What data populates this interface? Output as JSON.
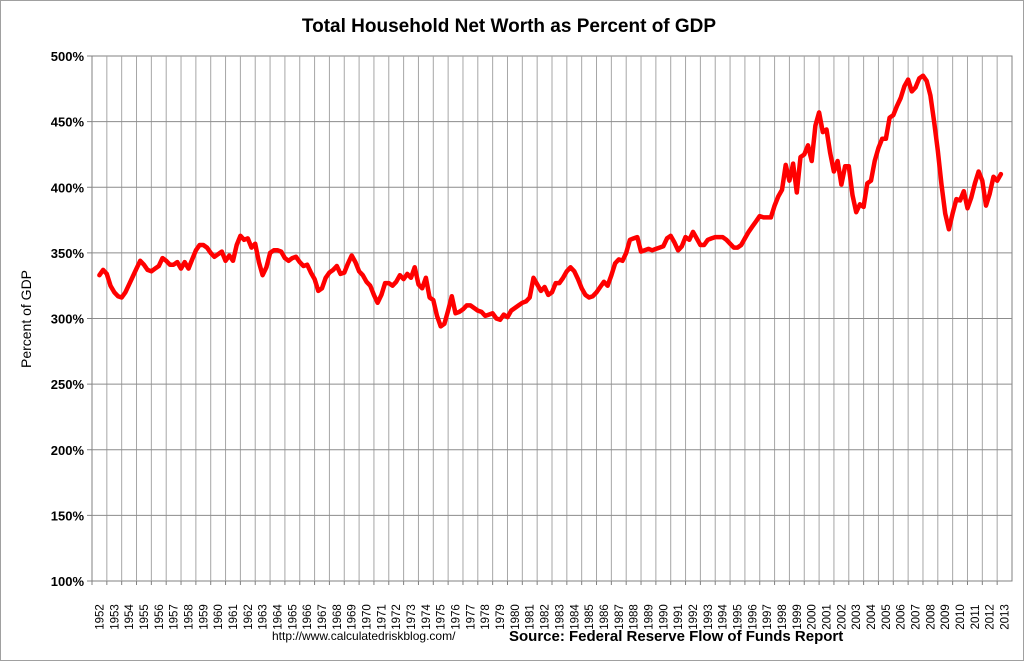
{
  "chart_data": {
    "type": "line",
    "title": "Total Household Net Worth as Percent of GDP",
    "xlabel": "",
    "ylabel": "Percent of GDP",
    "ylim": [
      100,
      500
    ],
    "y_ticks": [
      100,
      150,
      200,
      250,
      300,
      350,
      400,
      450,
      500
    ],
    "y_tick_labels": [
      "100%",
      "150%",
      "200%",
      "250%",
      "300%",
      "350%",
      "400%",
      "450%",
      "500%"
    ],
    "x_tick_labels": [
      "1952",
      "1953",
      "1954",
      "1955",
      "1956",
      "1957",
      "1958",
      "1959",
      "1960",
      "1961",
      "1962",
      "1963",
      "1964",
      "1965",
      "1966",
      "1967",
      "1968",
      "1969",
      "1970",
      "1971",
      "1972",
      "1973",
      "1974",
      "1975",
      "1976",
      "1977",
      "1978",
      "1979",
      "1980",
      "1981",
      "1982",
      "1983",
      "1984",
      "1985",
      "1986",
      "1987",
      "1988",
      "1989",
      "1990",
      "1991",
      "1992",
      "1993",
      "1994",
      "1995",
      "1996",
      "1997",
      "1998",
      "1999",
      "2000",
      "2001",
      "2002",
      "2003",
      "2004",
      "2005",
      "2006",
      "2007",
      "2008",
      "2009",
      "2010",
      "2011",
      "2012",
      "2013"
    ],
    "grid": true,
    "series": [
      {
        "color": "#ff0000",
        "points": [
          [
            1952.0,
            333
          ],
          [
            1952.25,
            337
          ],
          [
            1952.5,
            334
          ],
          [
            1952.75,
            325
          ],
          [
            1953.0,
            320
          ],
          [
            1953.25,
            317
          ],
          [
            1953.5,
            316
          ],
          [
            1953.75,
            320
          ],
          [
            1954.0,
            326
          ],
          [
            1954.25,
            332
          ],
          [
            1954.5,
            338
          ],
          [
            1954.75,
            344
          ],
          [
            1955.0,
            341
          ],
          [
            1955.25,
            337
          ],
          [
            1955.5,
            336
          ],
          [
            1955.75,
            338
          ],
          [
            1956.0,
            340
          ],
          [
            1956.25,
            346
          ],
          [
            1956.5,
            344
          ],
          [
            1956.75,
            341
          ],
          [
            1957.0,
            341
          ],
          [
            1957.25,
            343
          ],
          [
            1957.5,
            338
          ],
          [
            1957.75,
            343
          ],
          [
            1958.0,
            338
          ],
          [
            1958.25,
            345
          ],
          [
            1958.5,
            352
          ],
          [
            1958.75,
            356
          ],
          [
            1959.0,
            356
          ],
          [
            1959.25,
            354
          ],
          [
            1959.5,
            350
          ],
          [
            1959.75,
            347
          ],
          [
            1960.0,
            349
          ],
          [
            1960.25,
            351
          ],
          [
            1960.5,
            344
          ],
          [
            1960.75,
            348
          ],
          [
            1961.0,
            344
          ],
          [
            1961.25,
            356
          ],
          [
            1961.5,
            363
          ],
          [
            1961.75,
            360
          ],
          [
            1962.0,
            361
          ],
          [
            1962.25,
            354
          ],
          [
            1962.5,
            357
          ],
          [
            1962.75,
            343
          ],
          [
            1963.0,
            333
          ],
          [
            1963.25,
            339
          ],
          [
            1963.5,
            350
          ],
          [
            1963.75,
            352
          ],
          [
            1964.0,
            352
          ],
          [
            1964.25,
            351
          ],
          [
            1964.5,
            346
          ],
          [
            1964.75,
            344
          ],
          [
            1965.0,
            346
          ],
          [
            1965.25,
            347
          ],
          [
            1965.5,
            343
          ],
          [
            1965.75,
            340
          ],
          [
            1966.0,
            341
          ],
          [
            1966.25,
            335
          ],
          [
            1966.5,
            330
          ],
          [
            1966.75,
            321
          ],
          [
            1967.0,
            323
          ],
          [
            1967.25,
            331
          ],
          [
            1967.5,
            335
          ],
          [
            1967.75,
            337
          ],
          [
            1968.0,
            340
          ],
          [
            1968.25,
            334
          ],
          [
            1968.5,
            335
          ],
          [
            1968.75,
            342
          ],
          [
            1969.0,
            348
          ],
          [
            1969.25,
            343
          ],
          [
            1969.5,
            336
          ],
          [
            1969.75,
            333
          ],
          [
            1970.0,
            328
          ],
          [
            1970.25,
            325
          ],
          [
            1970.5,
            318
          ],
          [
            1970.75,
            312
          ],
          [
            1971.0,
            318
          ],
          [
            1971.25,
            327
          ],
          [
            1971.5,
            327
          ],
          [
            1971.75,
            325
          ],
          [
            1972.0,
            328
          ],
          [
            1972.25,
            333
          ],
          [
            1972.5,
            330
          ],
          [
            1972.75,
            334
          ],
          [
            1973.0,
            331
          ],
          [
            1973.25,
            339
          ],
          [
            1973.5,
            326
          ],
          [
            1973.75,
            323
          ],
          [
            1974.0,
            331
          ],
          [
            1974.25,
            316
          ],
          [
            1974.5,
            314
          ],
          [
            1974.75,
            302
          ],
          [
            1975.0,
            294
          ],
          [
            1975.25,
            296
          ],
          [
            1975.5,
            306
          ],
          [
            1975.75,
            317
          ],
          [
            1976.0,
            304
          ],
          [
            1976.25,
            305
          ],
          [
            1976.5,
            307
          ],
          [
            1976.75,
            310
          ],
          [
            1977.0,
            310
          ],
          [
            1977.25,
            308
          ],
          [
            1977.5,
            306
          ],
          [
            1977.75,
            305
          ],
          [
            1978.0,
            302
          ],
          [
            1978.25,
            303
          ],
          [
            1978.5,
            304
          ],
          [
            1978.75,
            300
          ],
          [
            1979.0,
            299
          ],
          [
            1979.25,
            303
          ],
          [
            1979.5,
            301
          ],
          [
            1979.75,
            306
          ],
          [
            1980.0,
            308
          ],
          [
            1980.25,
            310
          ],
          [
            1980.5,
            312
          ],
          [
            1980.75,
            313
          ],
          [
            1981.0,
            316
          ],
          [
            1981.25,
            331
          ],
          [
            1981.5,
            326
          ],
          [
            1981.75,
            321
          ],
          [
            1982.0,
            324
          ],
          [
            1982.25,
            318
          ],
          [
            1982.5,
            320
          ],
          [
            1982.75,
            327
          ],
          [
            1983.0,
            327
          ],
          [
            1983.25,
            331
          ],
          [
            1983.5,
            336
          ],
          [
            1983.75,
            339
          ],
          [
            1984.0,
            336
          ],
          [
            1984.25,
            330
          ],
          [
            1984.5,
            323
          ],
          [
            1984.75,
            318
          ],
          [
            1985.0,
            316
          ],
          [
            1985.25,
            317
          ],
          [
            1985.5,
            320
          ],
          [
            1985.75,
            324
          ],
          [
            1986.0,
            328
          ],
          [
            1986.25,
            325
          ],
          [
            1986.5,
            333
          ],
          [
            1986.75,
            342
          ],
          [
            1987.0,
            345
          ],
          [
            1987.25,
            344
          ],
          [
            1987.5,
            350
          ],
          [
            1987.75,
            360
          ],
          [
            1988.0,
            361
          ],
          [
            1988.25,
            362
          ],
          [
            1988.5,
            351
          ],
          [
            1988.75,
            352
          ],
          [
            1989.0,
            353
          ],
          [
            1989.25,
            352
          ],
          [
            1989.5,
            353
          ],
          [
            1989.75,
            354
          ],
          [
            1990.0,
            355
          ],
          [
            1990.25,
            361
          ],
          [
            1990.5,
            363
          ],
          [
            1990.75,
            358
          ],
          [
            1991.0,
            352
          ],
          [
            1991.25,
            355
          ],
          [
            1991.5,
            362
          ],
          [
            1991.75,
            360
          ],
          [
            1992.0,
            366
          ],
          [
            1992.25,
            361
          ],
          [
            1992.5,
            356
          ],
          [
            1992.75,
            356
          ],
          [
            1993.0,
            360
          ],
          [
            1993.25,
            361
          ],
          [
            1993.5,
            362
          ],
          [
            1993.75,
            362
          ],
          [
            1994.0,
            362
          ],
          [
            1994.25,
            360
          ],
          [
            1994.5,
            357
          ],
          [
            1994.75,
            354
          ],
          [
            1995.0,
            354
          ],
          [
            1995.25,
            356
          ],
          [
            1995.5,
            361
          ],
          [
            1995.75,
            366
          ],
          [
            1996.0,
            370
          ],
          [
            1996.25,
            374
          ],
          [
            1996.5,
            378
          ],
          [
            1996.75,
            377
          ],
          [
            1997.0,
            377
          ],
          [
            1997.25,
            377
          ],
          [
            1997.5,
            386
          ],
          [
            1997.75,
            393
          ],
          [
            1998.0,
            398
          ],
          [
            1998.25,
            417
          ],
          [
            1998.5,
            405
          ],
          [
            1998.75,
            418
          ],
          [
            1999.0,
            396
          ],
          [
            1999.25,
            423
          ],
          [
            1999.5,
            425
          ],
          [
            1999.75,
            432
          ],
          [
            2000.0,
            420
          ],
          [
            2000.25,
            447
          ],
          [
            2000.5,
            457
          ],
          [
            2000.75,
            442
          ],
          [
            2001.0,
            444
          ],
          [
            2001.25,
            426
          ],
          [
            2001.5,
            412
          ],
          [
            2001.75,
            420
          ],
          [
            2002.0,
            402
          ],
          [
            2002.25,
            416
          ],
          [
            2002.5,
            416
          ],
          [
            2002.75,
            394
          ],
          [
            2003.0,
            381
          ],
          [
            2003.25,
            387
          ],
          [
            2003.5,
            385
          ],
          [
            2003.75,
            403
          ],
          [
            2004.0,
            405
          ],
          [
            2004.25,
            420
          ],
          [
            2004.5,
            430
          ],
          [
            2004.75,
            437
          ],
          [
            2005.0,
            437
          ],
          [
            2005.25,
            453
          ],
          [
            2005.5,
            455
          ],
          [
            2005.75,
            462
          ],
          [
            2006.0,
            468
          ],
          [
            2006.25,
            477
          ],
          [
            2006.5,
            482
          ],
          [
            2006.75,
            473
          ],
          [
            2007.0,
            476
          ],
          [
            2007.25,
            483
          ],
          [
            2007.5,
            485
          ],
          [
            2007.75,
            481
          ],
          [
            2008.0,
            470
          ],
          [
            2008.25,
            450
          ],
          [
            2008.5,
            428
          ],
          [
            2008.75,
            402
          ],
          [
            2009.0,
            380
          ],
          [
            2009.25,
            368
          ],
          [
            2009.5,
            380
          ],
          [
            2009.75,
            391
          ],
          [
            2010.0,
            390
          ],
          [
            2010.25,
            397
          ],
          [
            2010.5,
            384
          ],
          [
            2010.75,
            392
          ],
          [
            2011.0,
            403
          ],
          [
            2011.25,
            412
          ],
          [
            2011.5,
            405
          ],
          [
            2011.75,
            386
          ],
          [
            2012.0,
            395
          ],
          [
            2012.25,
            408
          ],
          [
            2012.5,
            405
          ],
          [
            2012.75,
            410
          ]
        ]
      }
    ],
    "footer_url": "http://www.calculatedriskblog.com/",
    "footer_source": "Source: Federal Reserve Flow of Funds Report"
  }
}
